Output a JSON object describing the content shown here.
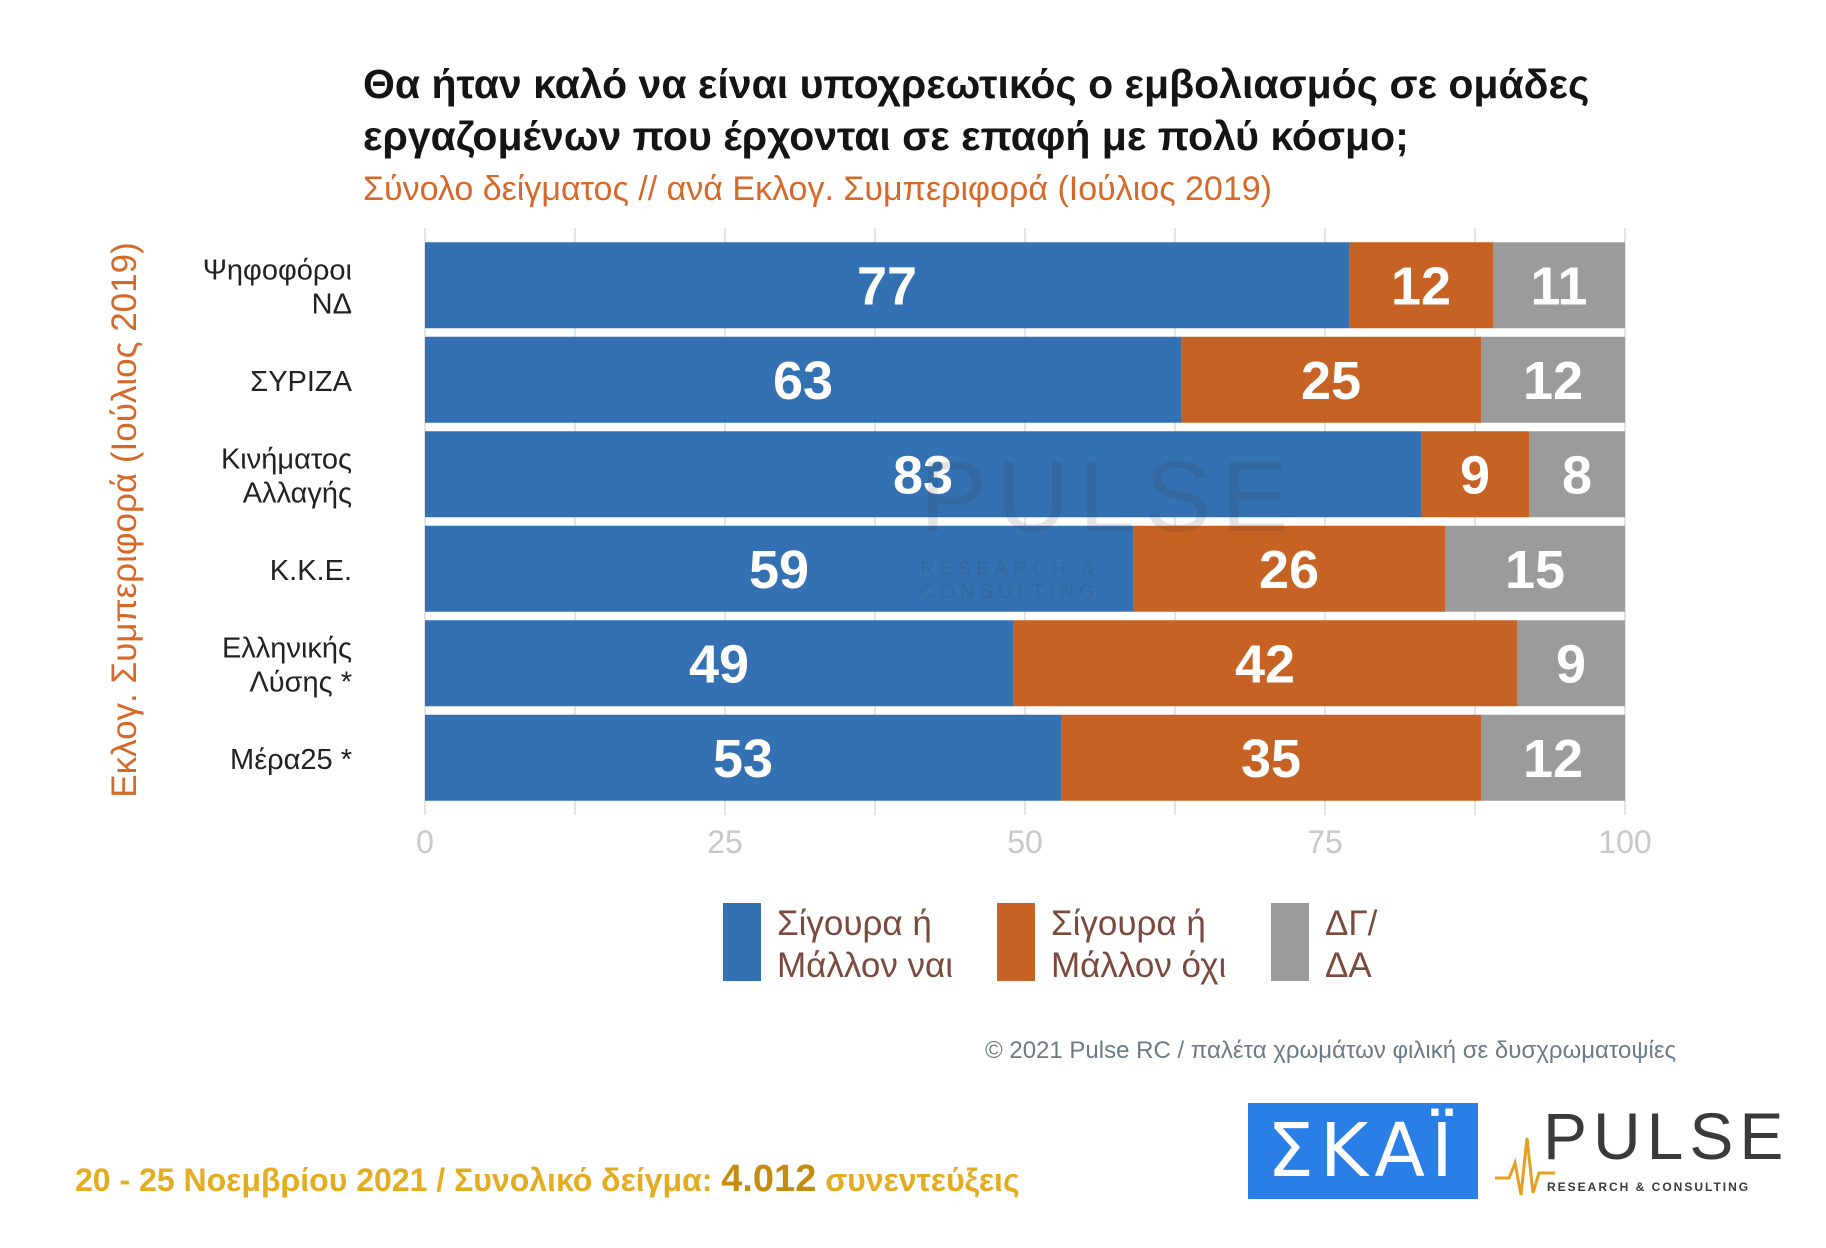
{
  "title": "Θα ήταν καλό να είναι υποχρεωτικός ο εμβολιασμός σε ομάδες εργαζομένων που έρχονται σε επαφή με πολύ κόσμο;",
  "subtitle": "Σύνολο δείγματος // ανά Εκλογ. Συμπεριφορά (Ιούλιος 2019)",
  "colors": {
    "yes": "#3471b2",
    "no": "#c66223",
    "dk": "#9b9b9b",
    "axis_text": "#c8c8c8",
    "grid": "#e4e4e4"
  },
  "chart_data": {
    "type": "bar",
    "orientation": "horizontal",
    "stacked": true,
    "ylabel": "Εκλογ. Συμπεριφορά (Ιούλιος 2019)",
    "categories": [
      "Ψηφοφόροι\nΝΔ",
      "ΣΥΡΙΖΑ",
      "Κινήματος\nΑλλαγής",
      "Κ.Κ.Ε.",
      "Ελληνικής\nΛύσης *",
      "Μέρα25 *"
    ],
    "series": [
      {
        "name": "Σίγουρα ή\nΜάλλον ναι",
        "color": "#3471b2",
        "values": [
          77,
          63,
          83,
          59,
          49,
          53
        ]
      },
      {
        "name": "Σίγουρα ή\nΜάλλον όχι",
        "color": "#c66223",
        "values": [
          12,
          25,
          9,
          26,
          42,
          35
        ]
      },
      {
        "name": "ΔΓ/\nΔΑ",
        "color": "#9b9b9b",
        "values": [
          11,
          12,
          8,
          15,
          9,
          12
        ]
      }
    ],
    "xlim": [
      0,
      100
    ],
    "xticks": [
      0,
      25,
      50,
      75,
      100
    ],
    "grid": true,
    "legend": "bottom"
  },
  "credit": "© 2021 Pulse RC  /  παλέτα χρωμάτων φιλική σε δυσχρωματοψίες",
  "footer": {
    "dates": "20 - 25  Νοεμβρίου 2021  /  Συνολικό δείγμα: ",
    "sample": "4.012",
    "unit": " συνεντεύξεις"
  },
  "logos": {
    "skai": "ΣΚΑΪ",
    "pulse": "PULSE",
    "pulse_sub": "RESEARCH & CONSULTING"
  }
}
